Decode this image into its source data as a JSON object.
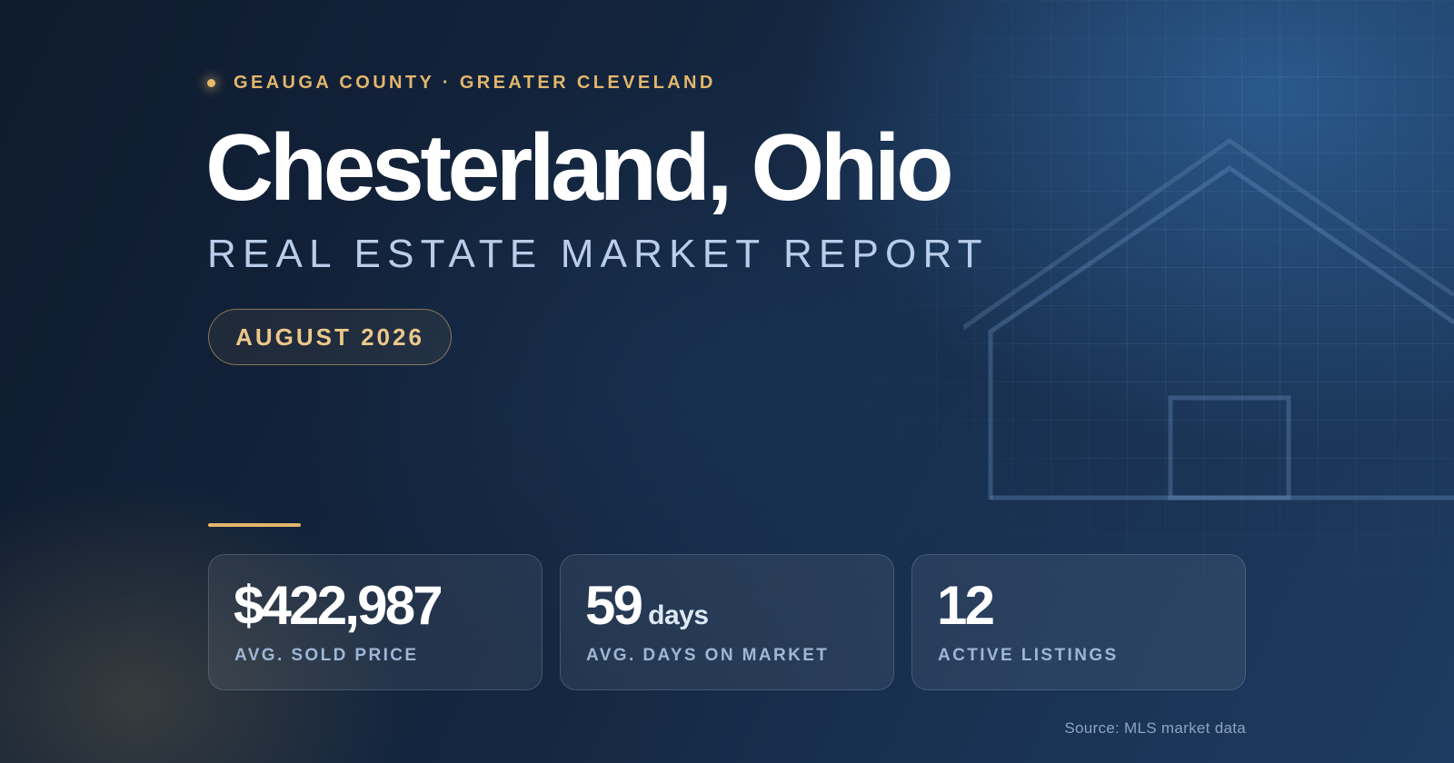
{
  "eyebrow": "GEAUGA COUNTY · GREATER CLEVELAND",
  "title": "Chesterland, Ohio",
  "subtitle": "REAL ESTATE MARKET REPORT",
  "date": "AUGUST 2026",
  "stats": [
    {
      "value": "$422,987",
      "unit": "",
      "label": "AVG. SOLD PRICE"
    },
    {
      "value": "59",
      "unit": "days",
      "label": "AVG. DAYS ON MARKET"
    },
    {
      "value": "12",
      "unit": "",
      "label": "ACTIVE LISTINGS"
    }
  ],
  "source": "Source: MLS market data",
  "colors": {
    "accent": "#e2b66c",
    "background": "#142640",
    "subtitle": "#b9cdea",
    "label": "#9fb6d6"
  },
  "icons": [
    "house-outline-icon"
  ]
}
